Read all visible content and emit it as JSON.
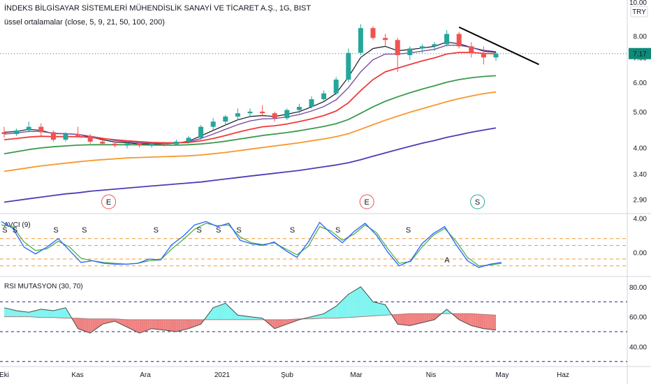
{
  "header": {
    "title": "İNDEKS BİLGİSAYAR SİSTEMLERİ MÜHENDİSLİK SANAYİ VE TİCARET A.Ş., 1G, BIST",
    "subtitle": "üssel ortalamalar (close, 5, 9, 21, 50, 100, 200)"
  },
  "currency": "TRY",
  "corner_value": "10.00",
  "colors": {
    "up": "#26a69a",
    "down": "#ef5350",
    "ema5": "#131722",
    "ema9": "#7b4fa3",
    "ema21": "#ef3b3b",
    "ema50": "#3a9a4b",
    "ema100": "#f7982a",
    "ema200": "#4a3db5",
    "trend": "#000000",
    "last_price_badge": "#0f8a78",
    "avci_fast": "#2962ff",
    "avci_slow": "#4caf50",
    "avci_levels": "#f7982a",
    "rsi_above": "#7ef5f0",
    "rsi_below": "#f08080",
    "rsi_levels": "#1a237e"
  },
  "chart_data": [
    {
      "type": "candlestick",
      "title": "İNDEKS BİLGİSAYAR SİSTEMLERİ MÜHENDİSLİK SANAYİ VE TİCARET A.Ş., 1G, BIST",
      "scale": "log",
      "ylim": [
        2.7,
        10.0
      ],
      "y_ticks": [
        "8.00",
        "7.00",
        "6.00",
        "5.00",
        "4.00",
        "3.40",
        "2.90"
      ],
      "x_ticks": [
        "Eki",
        "Kas",
        "Ara",
        "2021",
        "Şub",
        "Mar",
        "Nis",
        "May",
        "Haz"
      ],
      "last_price": "7.17",
      "weekly_ohlc": [
        [
          4.4,
          4.55,
          4.25,
          4.35
        ],
        [
          4.35,
          4.5,
          4.3,
          4.45
        ],
        [
          4.45,
          4.7,
          4.4,
          4.55
        ],
        [
          4.55,
          4.65,
          4.3,
          4.4
        ],
        [
          4.4,
          4.45,
          4.15,
          4.2
        ],
        [
          4.2,
          4.4,
          4.15,
          4.35
        ],
        [
          4.35,
          4.55,
          4.25,
          4.3
        ],
        [
          4.3,
          4.35,
          4.1,
          4.15
        ],
        [
          4.15,
          4.2,
          4.05,
          4.1
        ],
        [
          4.1,
          4.15,
          4.0,
          4.05
        ],
        [
          4.05,
          4.15,
          3.98,
          4.1
        ],
        [
          4.1,
          4.15,
          4.0,
          4.05
        ],
        [
          4.05,
          4.15,
          4.0,
          4.1
        ],
        [
          4.1,
          4.15,
          4.03,
          4.08
        ],
        [
          4.08,
          4.2,
          4.05,
          4.15
        ],
        [
          4.15,
          4.3,
          4.1,
          4.25
        ],
        [
          4.25,
          4.6,
          4.2,
          4.55
        ],
        [
          4.55,
          4.8,
          4.45,
          4.7
        ],
        [
          4.7,
          4.9,
          4.6,
          4.85
        ],
        [
          4.85,
          5.1,
          4.75,
          4.95
        ],
        [
          4.95,
          5.1,
          4.85,
          5.0
        ],
        [
          5.0,
          5.2,
          4.85,
          4.95
        ],
        [
          4.95,
          5.0,
          4.7,
          4.8
        ],
        [
          4.8,
          5.1,
          4.75,
          5.05
        ],
        [
          5.05,
          5.25,
          4.95,
          5.15
        ],
        [
          5.15,
          5.5,
          5.1,
          5.4
        ],
        [
          5.4,
          5.7,
          5.35,
          5.6
        ],
        [
          5.6,
          6.2,
          5.55,
          6.1
        ],
        [
          6.1,
          7.4,
          6.0,
          7.2
        ],
        [
          7.2,
          8.6,
          7.1,
          8.4
        ],
        [
          8.4,
          8.5,
          7.8,
          7.9
        ],
        [
          7.9,
          8.1,
          7.5,
          7.8
        ],
        [
          7.8,
          7.9,
          6.4,
          7.1
        ],
        [
          7.1,
          7.5,
          6.9,
          7.4
        ],
        [
          7.4,
          7.6,
          7.2,
          7.5
        ],
        [
          7.5,
          7.7,
          7.3,
          7.6
        ],
        [
          7.6,
          8.3,
          7.5,
          8.1
        ],
        [
          8.1,
          8.2,
          7.4,
          7.5
        ],
        [
          7.5,
          7.7,
          7.0,
          7.2
        ],
        [
          7.2,
          7.5,
          6.7,
          7.0
        ],
        [
          7.0,
          7.25,
          6.85,
          7.17
        ]
      ],
      "series": [
        {
          "name": "EMA 5",
          "values": [
            4.4,
            4.42,
            4.48,
            4.45,
            4.36,
            4.36,
            4.34,
            4.27,
            4.2,
            4.14,
            4.12,
            4.09,
            4.09,
            4.09,
            4.11,
            4.16,
            4.3,
            4.45,
            4.6,
            4.75,
            4.85,
            4.88,
            4.85,
            4.92,
            5.0,
            5.15,
            5.32,
            5.6,
            6.2,
            7.0,
            7.4,
            7.5,
            7.3,
            7.35,
            7.42,
            7.5,
            7.7,
            7.62,
            7.45,
            7.28,
            7.22
          ]
        },
        {
          "name": "EMA 9",
          "values": [
            4.35,
            4.38,
            4.42,
            4.42,
            4.37,
            4.36,
            4.34,
            4.29,
            4.24,
            4.18,
            4.15,
            4.12,
            4.11,
            4.1,
            4.11,
            4.14,
            4.23,
            4.35,
            4.48,
            4.61,
            4.72,
            4.78,
            4.79,
            4.84,
            4.91,
            5.02,
            5.16,
            5.38,
            5.8,
            6.4,
            6.9,
            7.15,
            7.15,
            7.2,
            7.28,
            7.36,
            7.55,
            7.55,
            7.45,
            7.32,
            7.26
          ]
        },
        {
          "name": "EMA 21",
          "values": [
            4.2,
            4.23,
            4.27,
            4.29,
            4.28,
            4.28,
            4.28,
            4.26,
            4.23,
            4.2,
            4.17,
            4.15,
            4.13,
            4.12,
            4.12,
            4.13,
            4.17,
            4.23,
            4.31,
            4.4,
            4.48,
            4.55,
            4.58,
            4.63,
            4.7,
            4.78,
            4.88,
            5.02,
            5.28,
            5.7,
            6.1,
            6.4,
            6.55,
            6.7,
            6.85,
            6.98,
            7.15,
            7.22,
            7.22,
            7.18,
            7.16
          ]
        },
        {
          "name": "EMA 50",
          "values": [
            3.85,
            3.9,
            3.95,
            3.99,
            4.02,
            4.04,
            4.06,
            4.07,
            4.07,
            4.07,
            4.07,
            4.07,
            4.06,
            4.06,
            4.06,
            4.07,
            4.09,
            4.12,
            4.16,
            4.21,
            4.26,
            4.31,
            4.35,
            4.39,
            4.44,
            4.5,
            4.56,
            4.64,
            4.76,
            4.95,
            5.15,
            5.33,
            5.48,
            5.62,
            5.75,
            5.87,
            6.0,
            6.1,
            6.17,
            6.22,
            6.25
          ]
        },
        {
          "name": "EMA 100",
          "values": [
            3.45,
            3.49,
            3.53,
            3.57,
            3.6,
            3.63,
            3.66,
            3.69,
            3.71,
            3.73,
            3.75,
            3.76,
            3.77,
            3.78,
            3.79,
            3.8,
            3.82,
            3.85,
            3.88,
            3.92,
            3.96,
            4.0,
            4.04,
            4.08,
            4.12,
            4.17,
            4.22,
            4.28,
            4.36,
            4.48,
            4.61,
            4.74,
            4.86,
            4.98,
            5.09,
            5.2,
            5.32,
            5.42,
            5.51,
            5.59,
            5.65
          ]
        },
        {
          "name": "EMA 200",
          "values": [
            2.85,
            2.88,
            2.91,
            2.94,
            2.97,
            3.0,
            3.02,
            3.05,
            3.07,
            3.09,
            3.11,
            3.13,
            3.15,
            3.17,
            3.19,
            3.21,
            3.23,
            3.26,
            3.29,
            3.32,
            3.35,
            3.38,
            3.41,
            3.44,
            3.47,
            3.51,
            3.55,
            3.59,
            3.64,
            3.71,
            3.79,
            3.87,
            3.95,
            4.03,
            4.11,
            4.18,
            4.26,
            4.33,
            4.4,
            4.46,
            4.52
          ]
        }
      ],
      "trendline": {
        "from_week": 37,
        "from_value": 8.45,
        "to_week": 43.5,
        "to_value": 6.7
      },
      "markers": [
        {
          "week": 8.5,
          "label": "E",
          "color": "#ef5350"
        },
        {
          "week": 29.5,
          "label": "E",
          "color": "#ef5350"
        },
        {
          "week": 38.5,
          "label": "S",
          "color": "#26a69a"
        }
      ]
    },
    {
      "type": "line",
      "title": "AVCI (9)",
      "ylim": [
        -2.6,
        4.2
      ],
      "y_ticks": [
        "4.00",
        "0.00"
      ],
      "levels": [
        1.6,
        0.8,
        -0.8,
        -1.6
      ],
      "series": [
        {
          "name": "fast",
          "values": [
            3.6,
            2.8,
            0.6,
            -0.2,
            0.6,
            1.6,
            0.2,
            -1.2,
            -1.0,
            -1.3,
            -1.4,
            -1.4,
            -1.3,
            -0.8,
            -0.9,
            0.9,
            1.9,
            3.2,
            3.6,
            3.0,
            3.4,
            1.4,
            1.0,
            0.8,
            1.2,
            0.2,
            -0.6,
            1.2,
            3.5,
            2.2,
            1.1,
            2.4,
            3.4,
            2.0,
            0.0,
            -1.6,
            -1.0,
            1.0,
            2.2,
            3.0,
            0.9,
            -1.0,
            -1.8,
            -1.4,
            -1.2
          ]
        },
        {
          "name": "slow",
          "values": [
            3.2,
            3.0,
            1.2,
            0.2,
            0.4,
            1.3,
            0.6,
            -0.7,
            -1.0,
            -1.2,
            -1.3,
            -1.4,
            -1.3,
            -1.0,
            -0.9,
            0.4,
            1.5,
            2.7,
            3.4,
            3.1,
            3.2,
            1.8,
            1.1,
            0.9,
            1.1,
            0.4,
            -0.3,
            0.7,
            3.0,
            2.5,
            1.4,
            2.1,
            3.2,
            2.3,
            0.4,
            -1.3,
            -1.1,
            0.6,
            2.0,
            2.8,
            1.3,
            -0.6,
            -1.6,
            -1.5,
            -1.3
          ]
        }
      ],
      "signals": [
        {
          "x": 0.3,
          "label": "S"
        },
        {
          "x": 1.2,
          "label": "S"
        },
        {
          "x": 4.8,
          "label": "S"
        },
        {
          "x": 7.3,
          "label": "S"
        },
        {
          "x": 13.6,
          "label": "S"
        },
        {
          "x": 17.4,
          "label": "S"
        },
        {
          "x": 19.1,
          "label": "S"
        },
        {
          "x": 20.9,
          "label": "S"
        },
        {
          "x": 25.6,
          "label": "S"
        },
        {
          "x": 29.6,
          "label": "S"
        },
        {
          "x": 35.8,
          "label": "S"
        },
        {
          "x": 39.2,
          "label": "A"
        }
      ]
    },
    {
      "type": "area",
      "title": "RSI MUTASYON (30, 70)",
      "ylim": [
        28,
        86
      ],
      "y_ticks": [
        "80.00",
        "60.00",
        "40.00"
      ],
      "levels": [
        70,
        50,
        30
      ],
      "series": [
        {
          "name": "rsi",
          "values": [
            66,
            64,
            63,
            65,
            64,
            66,
            52,
            49,
            55,
            57,
            53,
            49,
            52,
            51,
            50,
            52,
            55,
            66,
            69,
            61,
            60,
            59,
            52,
            55,
            58,
            60,
            62,
            67,
            75,
            80,
            70,
            68,
            55,
            54,
            56,
            58,
            65,
            58,
            54,
            52,
            51
          ]
        },
        {
          "name": "baseline",
          "values": [
            60,
            60,
            60,
            59.5,
            59.5,
            59,
            59,
            58.5,
            58.5,
            58.5,
            58,
            58,
            58,
            58,
            58,
            58,
            58,
            58,
            58,
            58,
            58,
            58,
            58,
            58,
            58.5,
            58.5,
            59,
            59,
            59.5,
            60,
            60.5,
            61,
            61.5,
            62,
            62,
            62,
            62,
            62,
            62,
            61.5,
            61
          ]
        }
      ]
    }
  ]
}
